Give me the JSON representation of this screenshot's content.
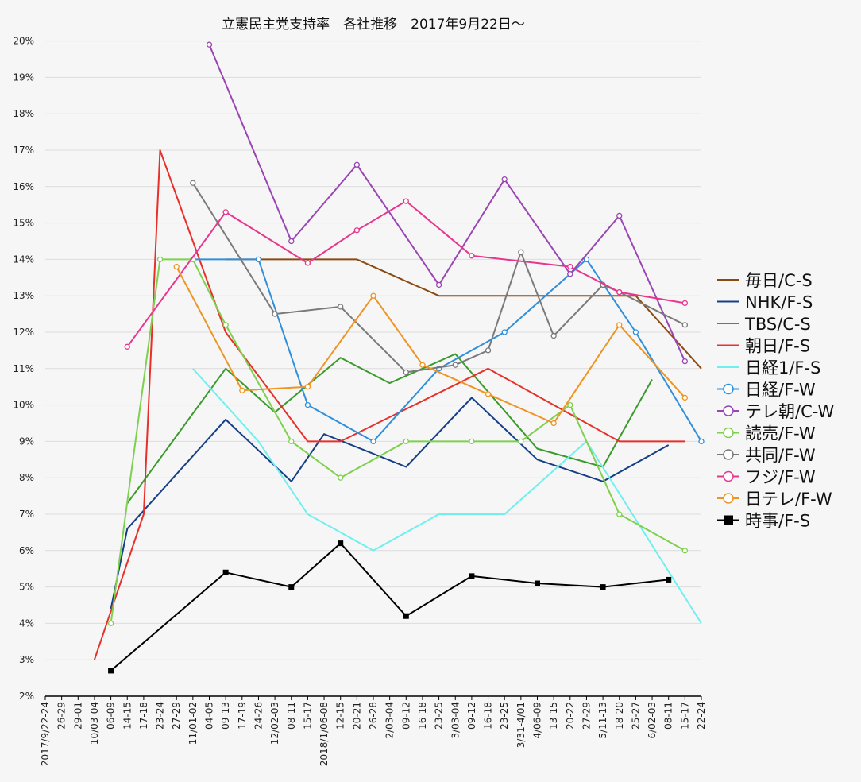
{
  "chart_data": {
    "type": "line",
    "title": "立憲民主党支持率　各社推移　2017年9月22日〜",
    "xlabel": "",
    "ylabel": "",
    "ylim": [
      2,
      20
    ],
    "yticks": [
      "2%",
      "3%",
      "4%",
      "5%",
      "6%",
      "7%",
      "8%",
      "9%",
      "10%",
      "11%",
      "12%",
      "13%",
      "14%",
      "15%",
      "16%",
      "17%",
      "18%",
      "19%",
      "20%"
    ],
    "categories": [
      "2017/9/22-24",
      "26-29",
      "29-01",
      "10/03-04",
      "06-09",
      "14-15",
      "17-18",
      "23-24",
      "27-29",
      "11/01-02",
      "04-05",
      "09-13",
      "17-19",
      "24-26",
      "12/02-03",
      "08-11",
      "15-17",
      "2018/1/06-08",
      "12-15",
      "20-21",
      "26-28",
      "2/03-04",
      "09-12",
      "16-18",
      "23-25",
      "3/03-04",
      "09-12",
      "16-18",
      "23-25",
      "3/31-4/01",
      "4/06-09",
      "13-15",
      "20-22",
      "27-29",
      "5/11-13",
      "18-20",
      "25-27",
      "6/02-03",
      "08-11",
      "15-17",
      "22-24"
    ],
    "grid": true,
    "legend_position": "right",
    "series": [
      {
        "name": "毎日/C-S",
        "color": "#8b4a10",
        "marker": "none",
        "points": [
          [
            11,
            14
          ],
          [
            19,
            14
          ],
          [
            24,
            13
          ],
          [
            36,
            13
          ],
          [
            40,
            11
          ]
        ]
      },
      {
        "name": "NHK/F-S",
        "color": "#153f86",
        "marker": "none",
        "points": [
          [
            4,
            4.4
          ],
          [
            5,
            6.6
          ],
          [
            11,
            9.6
          ],
          [
            15,
            7.9
          ],
          [
            17,
            9.2
          ],
          [
            22,
            8.3
          ],
          [
            26,
            10.2
          ],
          [
            30,
            8.5
          ],
          [
            34,
            7.9
          ],
          [
            38,
            8.9
          ]
        ]
      },
      {
        "name": "TBS/C-S",
        "color": "#3a9a2c",
        "marker": "none",
        "points": [
          [
            5,
            7.3
          ],
          [
            11,
            11
          ],
          [
            14,
            9.8
          ],
          [
            18,
            11.3
          ],
          [
            21,
            10.6
          ],
          [
            25,
            11.4
          ],
          [
            30,
            8.8
          ],
          [
            34,
            8.3
          ],
          [
            37,
            10.7
          ]
        ]
      },
      {
        "name": "朝日/F-S",
        "color": "#e8302a",
        "marker": "none",
        "points": [
          [
            3,
            3
          ],
          [
            6,
            7
          ],
          [
            7,
            17
          ],
          [
            11,
            12
          ],
          [
            16,
            9
          ],
          [
            18,
            9
          ],
          [
            27,
            11
          ],
          [
            35,
            9
          ],
          [
            39,
            9
          ]
        ]
      },
      {
        "name": "日経1/F-S",
        "color": "#6ff0ee",
        "marker": "none",
        "points": [
          [
            9,
            11
          ],
          [
            13,
            9
          ],
          [
            16,
            7
          ],
          [
            20,
            6
          ],
          [
            24,
            7
          ],
          [
            28,
            7
          ],
          [
            33,
            9
          ],
          [
            40,
            4
          ]
        ]
      },
      {
        "name": "日経/F-W",
        "color": "#2f8fdb",
        "marker": "circle",
        "points": [
          [
            9,
            14
          ],
          [
            13,
            14
          ],
          [
            16,
            10
          ],
          [
            20,
            9
          ],
          [
            24,
            11
          ],
          [
            28,
            12
          ],
          [
            32,
            13.6
          ],
          [
            33,
            14
          ],
          [
            36,
            12
          ],
          [
            40,
            9
          ]
        ]
      },
      {
        "name": "テレ朝/C-W",
        "color": "#9a45b3",
        "marker": "circle",
        "points": [
          [
            10,
            19.9
          ],
          [
            15,
            14.5
          ],
          [
            19,
            16.6
          ],
          [
            24,
            13.3
          ],
          [
            28,
            16.2
          ],
          [
            32,
            13.6
          ],
          [
            35,
            15.2
          ],
          [
            39,
            11.2
          ]
        ]
      },
      {
        "name": "読売/F-W",
        "color": "#7ed04e",
        "marker": "circle",
        "points": [
          [
            4,
            4
          ],
          [
            7,
            14
          ],
          [
            9,
            14
          ],
          [
            11,
            12.2
          ],
          [
            15,
            9
          ],
          [
            18,
            8
          ],
          [
            22,
            9
          ],
          [
            26,
            9
          ],
          [
            29,
            9
          ],
          [
            32,
            10
          ],
          [
            35,
            7
          ],
          [
            39,
            6
          ]
        ]
      },
      {
        "name": "共同/F-W",
        "color": "#7a7a7a",
        "marker": "circle",
        "points": [
          [
            9,
            16.1
          ],
          [
            14,
            12.5
          ],
          [
            18,
            12.7
          ],
          [
            22,
            10.9
          ],
          [
            25,
            11.1
          ],
          [
            27,
            11.5
          ],
          [
            29,
            14.2
          ],
          [
            31,
            11.9
          ],
          [
            34,
            13.3
          ],
          [
            35,
            13.1
          ],
          [
            39,
            12.2
          ]
        ]
      },
      {
        "name": "フジ/F-W",
        "color": "#e8368f",
        "marker": "circle",
        "points": [
          [
            5,
            11.6
          ],
          [
            11,
            15.3
          ],
          [
            16,
            13.9
          ],
          [
            19,
            14.8
          ],
          [
            22,
            15.6
          ],
          [
            26,
            14.1
          ],
          [
            32,
            13.8
          ],
          [
            35,
            13.1
          ],
          [
            39,
            12.8
          ]
        ]
      },
      {
        "name": "日テレ/F-W",
        "color": "#ef9423",
        "marker": "circle",
        "points": [
          [
            8,
            13.8
          ],
          [
            12,
            10.4
          ],
          [
            16,
            10.5
          ],
          [
            20,
            13
          ],
          [
            23,
            11.1
          ],
          [
            27,
            10.3
          ],
          [
            31,
            9.5
          ],
          [
            35,
            12.2
          ],
          [
            39,
            10.2
          ]
        ]
      },
      {
        "name": "時事/F-S",
        "color": "#000000",
        "marker": "square",
        "points": [
          [
            4,
            2.7
          ],
          [
            11,
            5.4
          ],
          [
            15,
            5
          ],
          [
            18,
            6.2
          ],
          [
            22,
            4.2
          ],
          [
            26,
            5.3
          ],
          [
            30,
            5.1
          ],
          [
            34,
            5
          ],
          [
            38,
            5.2
          ]
        ]
      }
    ]
  }
}
